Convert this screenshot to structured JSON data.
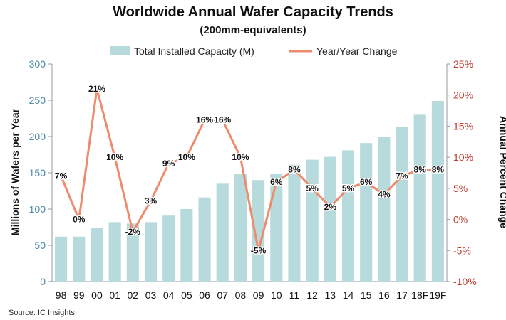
{
  "chart_data": {
    "type": "bar+line",
    "title": "Worldwide Annual Wafer Capacity Trends",
    "subtitle": "(200mm-equivalents)",
    "categories": [
      "98",
      "99",
      "00",
      "01",
      "02",
      "03",
      "04",
      "05",
      "06",
      "07",
      "08",
      "09",
      "10",
      "11",
      "12",
      "13",
      "14",
      "15",
      "16",
      "17",
      "18F",
      "19F"
    ],
    "series": [
      {
        "name": "Total Installed Capacity (M)",
        "type": "bar",
        "axis": "left",
        "color": "#b7dbdc",
        "values": [
          62,
          62,
          74,
          82,
          80,
          82,
          91,
          100,
          116,
          135,
          148,
          140,
          149,
          161,
          168,
          172,
          181,
          191,
          199,
          213,
          230,
          249
        ]
      },
      {
        "name": "Year/Year Change",
        "type": "line",
        "axis": "right",
        "color": "#f08a6c",
        "values": [
          7,
          0,
          21,
          10,
          -2,
          3,
          9,
          10,
          16,
          16,
          10,
          -5,
          6,
          8,
          5,
          2,
          5,
          6,
          4,
          7,
          8,
          8
        ],
        "labels": [
          "7%",
          "0%",
          "21%",
          "10%",
          "-2%",
          "3%",
          "9%",
          "10%",
          "16%",
          "16%",
          "10%",
          "-5%",
          "6%",
          "8%",
          "5%",
          "2%",
          "5%",
          "6%",
          "4%",
          "7%",
          "8%",
          "8%"
        ]
      }
    ],
    "ylabel": "Millions of Wafers per Year",
    "ylim": [
      0,
      300
    ],
    "yticks": [
      "0",
      "50",
      "100",
      "150",
      "200",
      "250",
      "300"
    ],
    "y2label": "Annual Percent Change",
    "y2lim": [
      -10,
      25
    ],
    "y2ticks": [
      "-10%",
      "-5%",
      "0%",
      "5%",
      "10%",
      "15%",
      "20%",
      "25%"
    ],
    "legend_position": "top",
    "grid": false,
    "source": "Source:  IC Insights"
  }
}
